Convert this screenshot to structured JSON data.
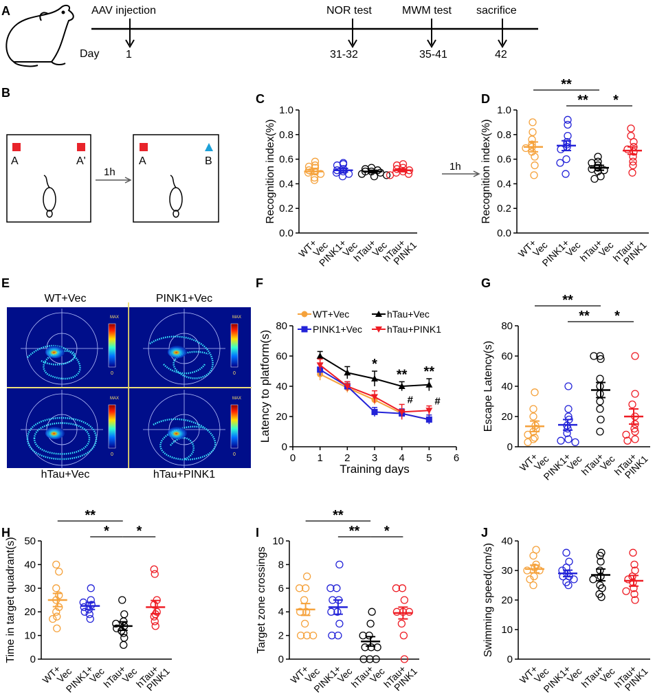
{
  "colors": {
    "wt": "#f5a23c",
    "pink1": "#2323d8",
    "htau": "#000000",
    "htau_pink1": "#ee1c24"
  },
  "timeline": {
    "label_A": "A",
    "day_label": "Day",
    "events": [
      {
        "label": "AAV injection",
        "day": "1"
      },
      {
        "label": "NOR test",
        "day": "31-32"
      },
      {
        "label": "MWM test",
        "day": "35-41"
      },
      {
        "label": "sacrifice",
        "day": "42"
      }
    ]
  },
  "nor_schematic": {
    "label_B": "B",
    "interval": "1h",
    "box1": {
      "obj_left": "A",
      "obj_right": "A'"
    },
    "box2": {
      "obj_left": "A",
      "obj_right": "B"
    },
    "arrow_to_D": "1h"
  },
  "heatmaps": {
    "label_E": "E",
    "panels": [
      {
        "title": "WT+Vec"
      },
      {
        "title": "PINK1+Vec"
      },
      {
        "title": "hTau+Vec"
      },
      {
        "title": "hTau+PINK1"
      }
    ],
    "scale_max": "MAX",
    "scale_min": "0"
  },
  "chart_data": [
    {
      "id": "C",
      "type": "scatter",
      "ylabel": "Recognition  index(%)",
      "ylim": [
        0,
        1
      ],
      "yticks": [
        "0.0",
        "0.2",
        "0.4",
        "0.6",
        "0.8",
        "1.0"
      ],
      "groups": [
        {
          "name": "WT+Vec",
          "l1": "WT+",
          "l2": "Vec",
          "color": "wt",
          "mean": 0.5,
          "sem": 0.02,
          "points": [
            0.58,
            0.55,
            0.54,
            0.53,
            0.51,
            0.5,
            0.49,
            0.48,
            0.45,
            0.43
          ]
        },
        {
          "name": "PINK1+Vec",
          "l1": "PINK1+",
          "l2": "Vec",
          "color": "pink1",
          "mean": 0.51,
          "sem": 0.015,
          "points": [
            0.57,
            0.56,
            0.55,
            0.52,
            0.51,
            0.5,
            0.49,
            0.48,
            0.46
          ]
        },
        {
          "name": "hTau+Vec",
          "l1": "hTau+",
          "l2": "Vec",
          "color": "htau",
          "mean": 0.5,
          "sem": 0.01,
          "points": [
            0.53,
            0.52,
            0.51,
            0.5,
            0.5,
            0.49,
            0.48,
            0.47,
            0.46
          ]
        },
        {
          "name": "hTau+PINK1",
          "l1": "hTau+",
          "l2": "PINK1",
          "color": "htau_pink1",
          "mean": 0.51,
          "sem": 0.012,
          "points": [
            0.56,
            0.55,
            0.53,
            0.52,
            0.51,
            0.5,
            0.49,
            0.48,
            0.47
          ]
        }
      ],
      "sig": []
    },
    {
      "id": "D",
      "type": "scatter",
      "ylabel": "Recognition  index(%)",
      "ylim": [
        0,
        1
      ],
      "yticks": [
        "0.0",
        "0.2",
        "0.4",
        "0.6",
        "0.8",
        "1.0"
      ],
      "groups": [
        {
          "name": "WT+Vec",
          "l1": "WT+",
          "l2": "Vec",
          "color": "wt",
          "mean": 0.7,
          "sem": 0.04,
          "points": [
            0.9,
            0.82,
            0.76,
            0.72,
            0.7,
            0.69,
            0.66,
            0.62,
            0.55,
            0.47
          ]
        },
        {
          "name": "PINK1+Vec",
          "l1": "PINK1+",
          "l2": "Vec",
          "color": "pink1",
          "mean": 0.71,
          "sem": 0.04,
          "points": [
            0.92,
            0.88,
            0.79,
            0.74,
            0.72,
            0.7,
            0.68,
            0.6,
            0.57,
            0.48
          ]
        },
        {
          "name": "hTau+Vec",
          "l1": "hTau+",
          "l2": "Vec",
          "color": "htau",
          "mean": 0.53,
          "sem": 0.02,
          "points": [
            0.62,
            0.58,
            0.57,
            0.55,
            0.53,
            0.52,
            0.51,
            0.5,
            0.46,
            0.44
          ]
        },
        {
          "name": "hTau+PINK1",
          "l1": "hTau+",
          "l2": "PINK1",
          "color": "htau_pink1",
          "mean": 0.67,
          "sem": 0.03,
          "points": [
            0.85,
            0.79,
            0.74,
            0.7,
            0.68,
            0.66,
            0.62,
            0.58,
            0.55,
            0.49
          ]
        }
      ],
      "sig": [
        {
          "from": 0,
          "to": 2,
          "level": 1,
          "label": "**"
        },
        {
          "from": 1,
          "to": 2,
          "level": 0,
          "label": "**"
        },
        {
          "from": 2,
          "to": 3,
          "level": 0,
          "label": "*"
        }
      ]
    },
    {
      "id": "F",
      "type": "line",
      "xlabel": "Training days",
      "ylabel": "Latency to platform(s)",
      "ylim": [
        0,
        80
      ],
      "xlim": [
        0,
        6
      ],
      "yticks": [
        "0",
        "20",
        "40",
        "60",
        "80"
      ],
      "xticks": [
        "0",
        "1",
        "2",
        "3",
        "4",
        "5",
        "6"
      ],
      "series": [
        {
          "name": "WT+Vec",
          "color": "wt",
          "marker": "circle",
          "values": [
            48,
            39,
            31,
            22,
            18
          ],
          "sem": [
            4,
            3,
            3,
            3,
            3
          ]
        },
        {
          "name": "PINK1+Vec",
          "color": "pink1",
          "marker": "square",
          "values": [
            51,
            40,
            23,
            22,
            18
          ],
          "sem": [
            4,
            3,
            3,
            3,
            3
          ]
        },
        {
          "name": "hTau+Vec",
          "color": "htau",
          "marker": "triangle",
          "values": [
            60,
            49,
            45,
            40,
            41
          ],
          "sem": [
            3,
            4,
            5,
            3,
            4
          ]
        },
        {
          "name": "hTau+PINK1",
          "color": "htau_pink1",
          "marker": "invtriangle",
          "values": [
            54,
            40,
            33,
            23,
            24
          ],
          "sem": [
            4,
            3,
            4,
            5,
            3
          ]
        }
      ],
      "annotations": [
        {
          "day": 3,
          "label": "*"
        },
        {
          "day": 4,
          "label": "**"
        },
        {
          "day": 5,
          "label": "**"
        },
        {
          "day": 4,
          "label": "#"
        },
        {
          "day": 5,
          "label": "#"
        }
      ]
    },
    {
      "id": "G",
      "type": "scatter",
      "ylabel": "Escape  Latency(s)",
      "ylim": [
        0,
        80
      ],
      "yticks": [
        "0",
        "20",
        "40",
        "60",
        "80"
      ],
      "groups": [
        {
          "name": "WT+Vec",
          "l1": "WT+",
          "l2": "Vec",
          "color": "wt",
          "mean": 13.5,
          "sem": 3.5,
          "points": [
            36,
            25,
            20,
            14,
            12,
            10,
            8,
            6,
            5,
            3
          ]
        },
        {
          "name": "PINK1+Vec",
          "l1": "PINK1+",
          "l2": "Vec",
          "color": "pink1",
          "mean": 14.5,
          "sem": 3.5,
          "points": [
            40,
            25,
            20,
            18,
            14,
            12,
            9,
            5,
            4,
            3
          ]
        },
        {
          "name": "hTau+Vec",
          "l1": "hTau+",
          "l2": "Vec",
          "color": "htau",
          "mean": 37.5,
          "sem": 5,
          "points": [
            60,
            60,
            58,
            45,
            40,
            35,
            30,
            25,
            18,
            10
          ]
        },
        {
          "name": "hTau+PINK1",
          "l1": "hTau+",
          "l2": "PINK1",
          "color": "htau_pink1",
          "mean": 20,
          "sem": 5,
          "points": [
            60,
            35,
            28,
            20,
            15,
            12,
            10,
            8,
            5,
            4
          ]
        }
      ],
      "sig": [
        {
          "from": 0,
          "to": 2,
          "level": 1,
          "label": "**"
        },
        {
          "from": 1,
          "to": 2,
          "level": 0,
          "label": "**"
        },
        {
          "from": 2,
          "to": 3,
          "level": 0,
          "label": "*"
        }
      ]
    },
    {
      "id": "H",
      "type": "scatter",
      "ylabel": "Time in target quadrant(s)",
      "ylim": [
        0,
        50
      ],
      "yticks": [
        "0",
        "10",
        "20",
        "30",
        "40",
        "50"
      ],
      "groups": [
        {
          "name": "WT+Vec",
          "l1": "WT+",
          "l2": "Vec",
          "color": "wt",
          "mean": 25,
          "sem": 2.8,
          "points": [
            40,
            37,
            30,
            27,
            25,
            22,
            20,
            18,
            17,
            13
          ]
        },
        {
          "name": "PINK1+Vec",
          "l1": "PINK1+",
          "l2": "Vec",
          "color": "pink1",
          "mean": 22.5,
          "sem": 1.5,
          "points": [
            30,
            25,
            24,
            23,
            22,
            21,
            20,
            19,
            17
          ]
        },
        {
          "name": "hTau+Vec",
          "l1": "hTau+",
          "l2": "Vec",
          "color": "htau",
          "mean": 14,
          "sem": 1.8,
          "points": [
            25,
            19,
            16,
            15,
            14,
            13,
            12,
            11,
            9,
            6
          ]
        },
        {
          "name": "hTau+PINK1",
          "l1": "hTau+",
          "l2": "PINK1",
          "color": "htau_pink1",
          "mean": 22,
          "sem": 2.8,
          "points": [
            38,
            36,
            25,
            23,
            20,
            19,
            18,
            16,
            14
          ]
        }
      ],
      "sig": [
        {
          "from": 0,
          "to": 2,
          "level": 1,
          "label": "**"
        },
        {
          "from": 1,
          "to": 2,
          "level": 0,
          "label": "*"
        },
        {
          "from": 2,
          "to": 3,
          "level": 0,
          "label": "*"
        }
      ]
    },
    {
      "id": "I",
      "type": "scatter",
      "ylabel": "Target  zone  crossings",
      "ylim": [
        0,
        10
      ],
      "yticks": [
        "0",
        "2",
        "4",
        "6",
        "8",
        "10"
      ],
      "groups": [
        {
          "name": "WT+Vec",
          "l1": "WT+",
          "l2": "Vec",
          "color": "wt",
          "mean": 4.2,
          "sem": 0.5,
          "points": [
            7,
            6,
            6,
            5,
            4,
            4,
            3,
            2,
            2,
            2
          ]
        },
        {
          "name": "PINK1+Vec",
          "l1": "PINK1+",
          "l2": "Vec",
          "color": "pink1",
          "mean": 4.4,
          "sem": 0.6,
          "points": [
            8,
            6,
            6,
            5,
            5,
            4,
            4,
            3,
            2,
            2
          ]
        },
        {
          "name": "hTau+Vec",
          "l1": "hTau+",
          "l2": "Vec",
          "color": "htau",
          "mean": 1.5,
          "sem": 0.4,
          "points": [
            4,
            3,
            2,
            2,
            1,
            1,
            1,
            0,
            0,
            0
          ]
        },
        {
          "name": "hTau+PINK1",
          "l1": "hTau+",
          "l2": "PINK1",
          "color": "htau_pink1",
          "mean": 3.9,
          "sem": 0.5,
          "points": [
            6,
            6,
            5,
            4,
            4,
            4,
            3,
            2,
            0
          ]
        }
      ],
      "sig": [
        {
          "from": 0,
          "to": 2,
          "level": 1,
          "label": "**"
        },
        {
          "from": 1,
          "to": 2,
          "level": 0,
          "label": "**"
        },
        {
          "from": 2,
          "to": 3,
          "level": 0,
          "label": "*"
        }
      ]
    },
    {
      "id": "J",
      "type": "scatter",
      "ylabel": "Swimming  speed(cm/s)",
      "ylim": [
        0,
        40
      ],
      "yticks": [
        "0",
        "10",
        "20",
        "30",
        "40"
      ],
      "groups": [
        {
          "name": "WT+Vec",
          "l1": "WT+",
          "l2": "Vec",
          "color": "wt",
          "mean": 30.5,
          "sem": 1.3,
          "points": [
            37,
            35,
            32,
            31,
            30,
            30,
            28,
            27,
            25
          ]
        },
        {
          "name": "PINK1+Vec",
          "l1": "PINK1+",
          "l2": "Vec",
          "color": "pink1",
          "mean": 29,
          "sem": 1.1,
          "points": [
            36,
            33,
            31,
            30,
            29,
            28,
            28,
            27,
            26,
            25
          ]
        },
        {
          "name": "hTau+Vec",
          "l1": "hTau+",
          "l2": "Vec",
          "color": "htau",
          "mean": 28.5,
          "sem": 2,
          "points": [
            36,
            35,
            33,
            30,
            28,
            27,
            25,
            24,
            22,
            21
          ]
        },
        {
          "name": "hTau+PINK1",
          "l1": "hTau+",
          "l2": "PINK1",
          "color": "htau_pink1",
          "mean": 26.5,
          "sem": 1.8,
          "points": [
            36,
            32,
            30,
            28,
            27,
            26,
            24,
            23,
            22,
            20
          ]
        }
      ],
      "sig": []
    }
  ]
}
